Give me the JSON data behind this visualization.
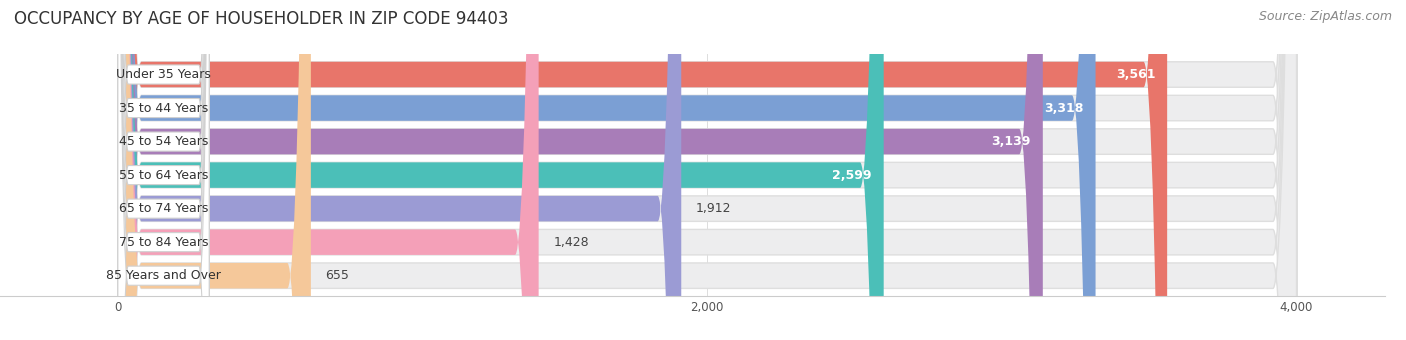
{
  "title": "OCCUPANCY BY AGE OF HOUSEHOLDER IN ZIP CODE 94403",
  "source": "Source: ZipAtlas.com",
  "categories": [
    "Under 35 Years",
    "35 to 44 Years",
    "45 to 54 Years",
    "55 to 64 Years",
    "65 to 74 Years",
    "75 to 84 Years",
    "85 Years and Over"
  ],
  "values": [
    3561,
    3318,
    3139,
    2599,
    1912,
    1428,
    655
  ],
  "bar_colors": [
    "#E8756A",
    "#7B9FD4",
    "#A87DB8",
    "#4BBFB8",
    "#9B9BD4",
    "#F4A0B8",
    "#F5C89A"
  ],
  "bar_bg_colors": [
    "#EDEDEE",
    "#EDEDEE",
    "#EDEDEE",
    "#EDEDEE",
    "#EDEDEE",
    "#EDEDEE",
    "#EDEDEE"
  ],
  "xlim": [
    0,
    4300
  ],
  "xdata_max": 4000,
  "xticks": [
    0,
    2000,
    4000
  ],
  "title_fontsize": 12,
  "source_fontsize": 9,
  "label_fontsize": 9,
  "value_fontsize": 9,
  "background_color": "#FFFFFF",
  "bar_bg_color": "#EDEDEE",
  "label_pill_color": "#FFFFFF",
  "label_pill_border": "#E0E0E0"
}
